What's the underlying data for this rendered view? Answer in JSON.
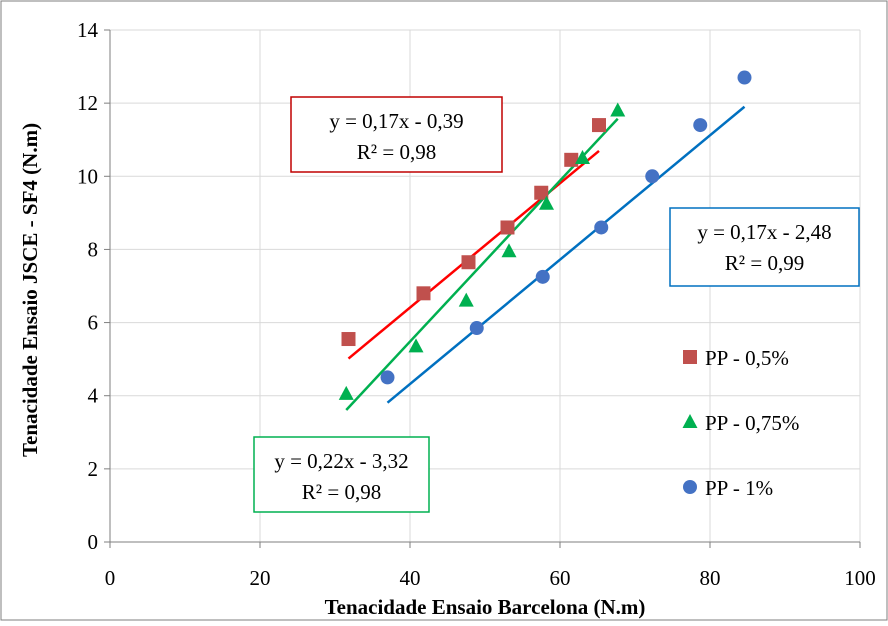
{
  "chart_data": {
    "type": "scatter",
    "xlabel": "Tenacidade Ensaio Barcelona (N.m)",
    "ylabel": "Tenacidade Ensaio JSCE - SF4 (N.m)",
    "xlim": [
      0,
      100
    ],
    "ylim": [
      0,
      14
    ],
    "x_ticks": [
      "0",
      "20",
      "40",
      "60",
      "80",
      "100"
    ],
    "y_ticks": [
      "0",
      "2",
      "4",
      "6",
      "8",
      "10",
      "12",
      "14"
    ],
    "grid": true,
    "legend_position": "right",
    "series": [
      {
        "name": "PP - 0,5%",
        "marker": "square",
        "color": "#c0504d",
        "line_color": "#ff0000",
        "x": [
          31.8,
          41.8,
          47.8,
          53.0,
          57.5,
          61.5,
          65.2
        ],
        "y": [
          5.55,
          6.8,
          7.65,
          8.6,
          9.55,
          10.45,
          11.4
        ],
        "trendline": {
          "slope": 0.17,
          "intercept": -0.39,
          "x_range": [
            31.8,
            65.2
          ]
        },
        "equation": "y = 0,17x - 0,39",
        "r2": "R² = 0,98"
      },
      {
        "name": "PP - 0,75%",
        "marker": "triangle",
        "color": "#00b050",
        "line_color": "#00b050",
        "x": [
          31.5,
          40.8,
          47.5,
          53.2,
          58.2,
          63.0,
          67.7
        ],
        "y": [
          4.05,
          5.35,
          6.6,
          7.95,
          9.25,
          10.5,
          11.8
        ],
        "trendline": {
          "slope": 0.22,
          "intercept": -3.32,
          "x_range": [
            31.5,
            67.7
          ]
        },
        "equation": "y = 0,22x - 3,32",
        "r2": "R² = 0,98"
      },
      {
        "name": "PP - 1%",
        "marker": "circle",
        "color": "#4472c4",
        "line_color": "#0070c0",
        "x": [
          37.0,
          48.9,
          57.7,
          65.5,
          72.3,
          78.7,
          84.6
        ],
        "y": [
          4.5,
          5.85,
          7.25,
          8.6,
          10.0,
          11.4,
          12.7
        ],
        "trendline": {
          "slope": 0.17,
          "intercept": -2.48,
          "x_range": [
            37.0,
            84.6
          ]
        },
        "equation": "y = 0,17x - 2,48",
        "r2": "R² = 0,99"
      }
    ],
    "annotations_colors": {
      "red_box": "#c00000",
      "green_box": "#00b050",
      "blue_box": "#0070c0"
    }
  }
}
